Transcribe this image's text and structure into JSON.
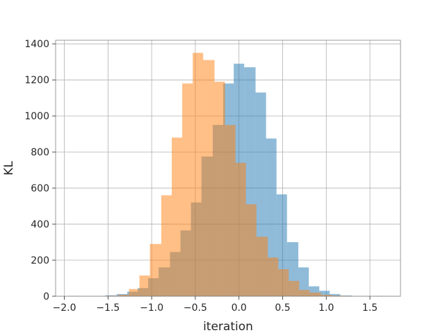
{
  "chart_data": {
    "type": "bar",
    "subtype": "overlapping-histogram",
    "title": "",
    "xlabel": "iteration",
    "ylabel": "KL",
    "xlim": [
      -2.1,
      1.85
    ],
    "ylim": [
      0,
      1420
    ],
    "xticks": [
      -2.0,
      -1.5,
      -1.0,
      -0.5,
      0.0,
      0.5,
      1.0,
      1.5
    ],
    "xtick_labels": [
      "−2.0",
      "−1.5",
      "−1.0",
      "−0.5",
      "0.0",
      "0.5",
      "1.0",
      "1.5"
    ],
    "yticks": [
      0,
      200,
      400,
      600,
      800,
      1000,
      1200,
      1400
    ],
    "ytick_labels": [
      "0",
      "200",
      "400",
      "600",
      "800",
      "1000",
      "1200",
      "1400"
    ],
    "grid": true,
    "legend": "none",
    "series": [
      {
        "color": "#1f77b4",
        "alpha": 0.5,
        "bins": [
          {
            "x0": -1.95,
            "x1": -1.83,
            "count": 2
          },
          {
            "x0": -1.53,
            "x1": -1.4,
            "count": 5
          },
          {
            "x0": -1.4,
            "x1": -1.28,
            "count": 12
          },
          {
            "x0": -1.28,
            "x1": -1.16,
            "count": 25
          },
          {
            "x0": -1.16,
            "x1": -1.04,
            "count": 45
          },
          {
            "x0": -1.04,
            "x1": -0.92,
            "count": 100
          },
          {
            "x0": -0.92,
            "x1": -0.79,
            "count": 160
          },
          {
            "x0": -0.79,
            "x1": -0.67,
            "count": 245
          },
          {
            "x0": -0.67,
            "x1": -0.55,
            "count": 365
          },
          {
            "x0": -0.55,
            "x1": -0.43,
            "count": 520
          },
          {
            "x0": -0.43,
            "x1": -0.3,
            "count": 775
          },
          {
            "x0": -0.3,
            "x1": -0.18,
            "count": 950
          },
          {
            "x0": -0.18,
            "x1": -0.06,
            "count": 1180
          },
          {
            "x0": -0.06,
            "x1": 0.06,
            "count": 1290
          },
          {
            "x0": 0.06,
            "x1": 0.19,
            "count": 1270
          },
          {
            "x0": 0.19,
            "x1": 0.31,
            "count": 1130
          },
          {
            "x0": 0.31,
            "x1": 0.43,
            "count": 875
          },
          {
            "x0": 0.43,
            "x1": 0.55,
            "count": 565
          },
          {
            "x0": 0.55,
            "x1": 0.68,
            "count": 300
          },
          {
            "x0": 0.68,
            "x1": 0.8,
            "count": 160
          },
          {
            "x0": 0.8,
            "x1": 0.92,
            "count": 55
          },
          {
            "x0": 0.92,
            "x1": 1.04,
            "count": 30
          },
          {
            "x0": 1.04,
            "x1": 1.16,
            "count": 12
          },
          {
            "x0": 1.16,
            "x1": 1.29,
            "count": 4
          }
        ]
      },
      {
        "color": "#ff7f0e",
        "alpha": 0.5,
        "bins": [
          {
            "x0": -1.5,
            "x1": -1.38,
            "count": 3
          },
          {
            "x0": -1.38,
            "x1": -1.26,
            "count": 8
          },
          {
            "x0": -1.26,
            "x1": -1.14,
            "count": 40
          },
          {
            "x0": -1.14,
            "x1": -1.02,
            "count": 115
          },
          {
            "x0": -1.02,
            "x1": -0.89,
            "count": 290
          },
          {
            "x0": -0.89,
            "x1": -0.77,
            "count": 560
          },
          {
            "x0": -0.77,
            "x1": -0.65,
            "count": 880
          },
          {
            "x0": -0.65,
            "x1": -0.53,
            "count": 1180
          },
          {
            "x0": -0.53,
            "x1": -0.41,
            "count": 1350
          },
          {
            "x0": -0.41,
            "x1": -0.28,
            "count": 1310
          },
          {
            "x0": -0.28,
            "x1": -0.16,
            "count": 1190
          },
          {
            "x0": -0.16,
            "x1": -0.04,
            "count": 950
          },
          {
            "x0": -0.04,
            "x1": 0.08,
            "count": 740
          },
          {
            "x0": 0.08,
            "x1": 0.2,
            "count": 510
          },
          {
            "x0": 0.2,
            "x1": 0.33,
            "count": 330
          },
          {
            "x0": 0.33,
            "x1": 0.45,
            "count": 215
          },
          {
            "x0": 0.45,
            "x1": 0.57,
            "count": 150
          },
          {
            "x0": 0.57,
            "x1": 0.69,
            "count": 85
          },
          {
            "x0": 0.69,
            "x1": 0.81,
            "count": 35
          },
          {
            "x0": 0.81,
            "x1": 0.94,
            "count": 20
          },
          {
            "x0": 0.94,
            "x1": 1.06,
            "count": 8
          },
          {
            "x0": 1.06,
            "x1": 1.18,
            "count": 4
          },
          {
            "x0": 1.18,
            "x1": 1.3,
            "count": 2
          },
          {
            "x0": 1.55,
            "x1": 1.67,
            "count": 2
          }
        ]
      }
    ]
  }
}
